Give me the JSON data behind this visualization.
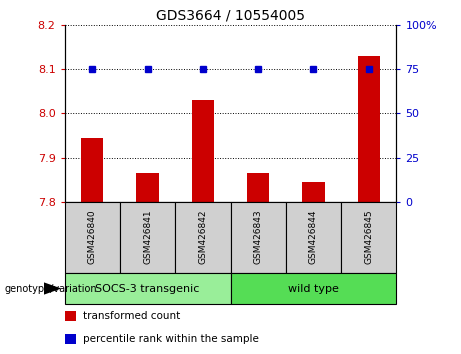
{
  "title": "GDS3664 / 10554005",
  "samples": [
    "GSM426840",
    "GSM426841",
    "GSM426842",
    "GSM426843",
    "GSM426844",
    "GSM426845"
  ],
  "bar_values": [
    7.945,
    7.865,
    8.03,
    7.865,
    7.845,
    8.13
  ],
  "dot_values": [
    75,
    75,
    75,
    75,
    75,
    75
  ],
  "ylim_left": [
    7.8,
    8.2
  ],
  "ylim_right": [
    0,
    100
  ],
  "yticks_left": [
    7.8,
    7.9,
    8.0,
    8.1,
    8.2
  ],
  "yticks_right": [
    0,
    25,
    50,
    75,
    100
  ],
  "bar_color": "#cc0000",
  "dot_color": "#0000cc",
  "bar_width": 0.4,
  "groups": [
    {
      "label": "SOCS-3 transgenic",
      "indices": [
        0,
        1,
        2
      ],
      "color": "#99ee99"
    },
    {
      "label": "wild type",
      "indices": [
        3,
        4,
        5
      ],
      "color": "#55dd55"
    }
  ],
  "legend_items": [
    {
      "color": "#cc0000",
      "label": "transformed count"
    },
    {
      "color": "#0000cc",
      "label": "percentile rank within the sample"
    }
  ],
  "tick_label_color_left": "#cc0000",
  "tick_label_color_right": "#0000cc"
}
